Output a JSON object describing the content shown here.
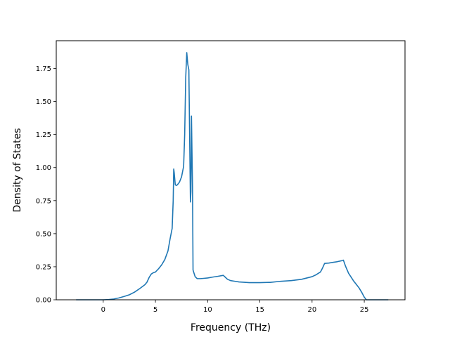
{
  "chart_data": {
    "type": "line",
    "title": "",
    "xlabel": "Frequency (THz)",
    "ylabel": "Density of States",
    "xlim": [
      -4.5,
      28.9
    ],
    "ylim": [
      0.0,
      1.96
    ],
    "xticks": [
      0,
      5,
      10,
      15,
      20,
      25
    ],
    "xtick_labels": [
      "0",
      "5",
      "10",
      "15",
      "20",
      "25"
    ],
    "yticks": [
      0.0,
      0.25,
      0.5,
      0.75,
      1.0,
      1.25,
      1.5,
      1.75
    ],
    "ytick_labels": [
      "0.00",
      "0.25",
      "0.50",
      "0.75",
      "1.00",
      "1.25",
      "1.50",
      "1.75"
    ],
    "grid": false,
    "line_color": "#1f77b4",
    "series": [
      {
        "x": [
          -2.6,
          -1.0,
          0.0,
          0.5,
          1.0,
          1.5,
          2.0,
          2.5,
          3.0,
          3.5,
          4.0,
          4.2,
          4.4,
          4.6,
          4.8,
          5.0,
          5.3,
          5.6,
          5.9,
          6.2,
          6.4,
          6.6,
          6.7,
          6.75,
          6.8,
          6.9,
          7.0,
          7.1,
          7.3,
          7.5,
          7.7,
          7.8,
          7.9,
          8.0,
          8.1,
          8.2,
          8.35,
          8.4,
          8.45,
          8.5,
          8.55,
          8.6,
          8.7,
          8.8,
          9.0,
          9.3,
          9.6,
          10.0,
          10.5,
          11.0,
          11.5,
          11.7,
          11.9,
          12.2,
          12.6,
          13.0,
          14.0,
          15.0,
          16.0,
          17.0,
          18.0,
          19.0,
          19.5,
          20.0,
          20.4,
          20.8,
          21.0,
          21.2,
          21.6,
          22.0,
          22.4,
          22.8,
          23.0,
          23.2,
          23.5,
          24.0,
          24.5,
          24.8,
          25.0,
          25.2,
          26.0,
          27.3
        ],
        "values": [
          0.0,
          0.0,
          0.0,
          0.002,
          0.006,
          0.014,
          0.025,
          0.038,
          0.058,
          0.085,
          0.115,
          0.135,
          0.17,
          0.195,
          0.205,
          0.21,
          0.235,
          0.265,
          0.305,
          0.37,
          0.46,
          0.54,
          0.75,
          0.99,
          0.96,
          0.87,
          0.865,
          0.87,
          0.89,
          0.93,
          1.01,
          1.25,
          1.68,
          1.87,
          1.78,
          1.74,
          0.74,
          0.82,
          1.39,
          1.12,
          0.86,
          0.225,
          0.2,
          0.175,
          0.16,
          0.16,
          0.162,
          0.165,
          0.172,
          0.178,
          0.185,
          0.17,
          0.155,
          0.145,
          0.14,
          0.135,
          0.13,
          0.13,
          0.132,
          0.14,
          0.145,
          0.155,
          0.165,
          0.175,
          0.19,
          0.21,
          0.24,
          0.275,
          0.278,
          0.283,
          0.288,
          0.295,
          0.3,
          0.255,
          0.2,
          0.14,
          0.09,
          0.05,
          0.02,
          0.0,
          0.0,
          0.0
        ]
      }
    ]
  }
}
